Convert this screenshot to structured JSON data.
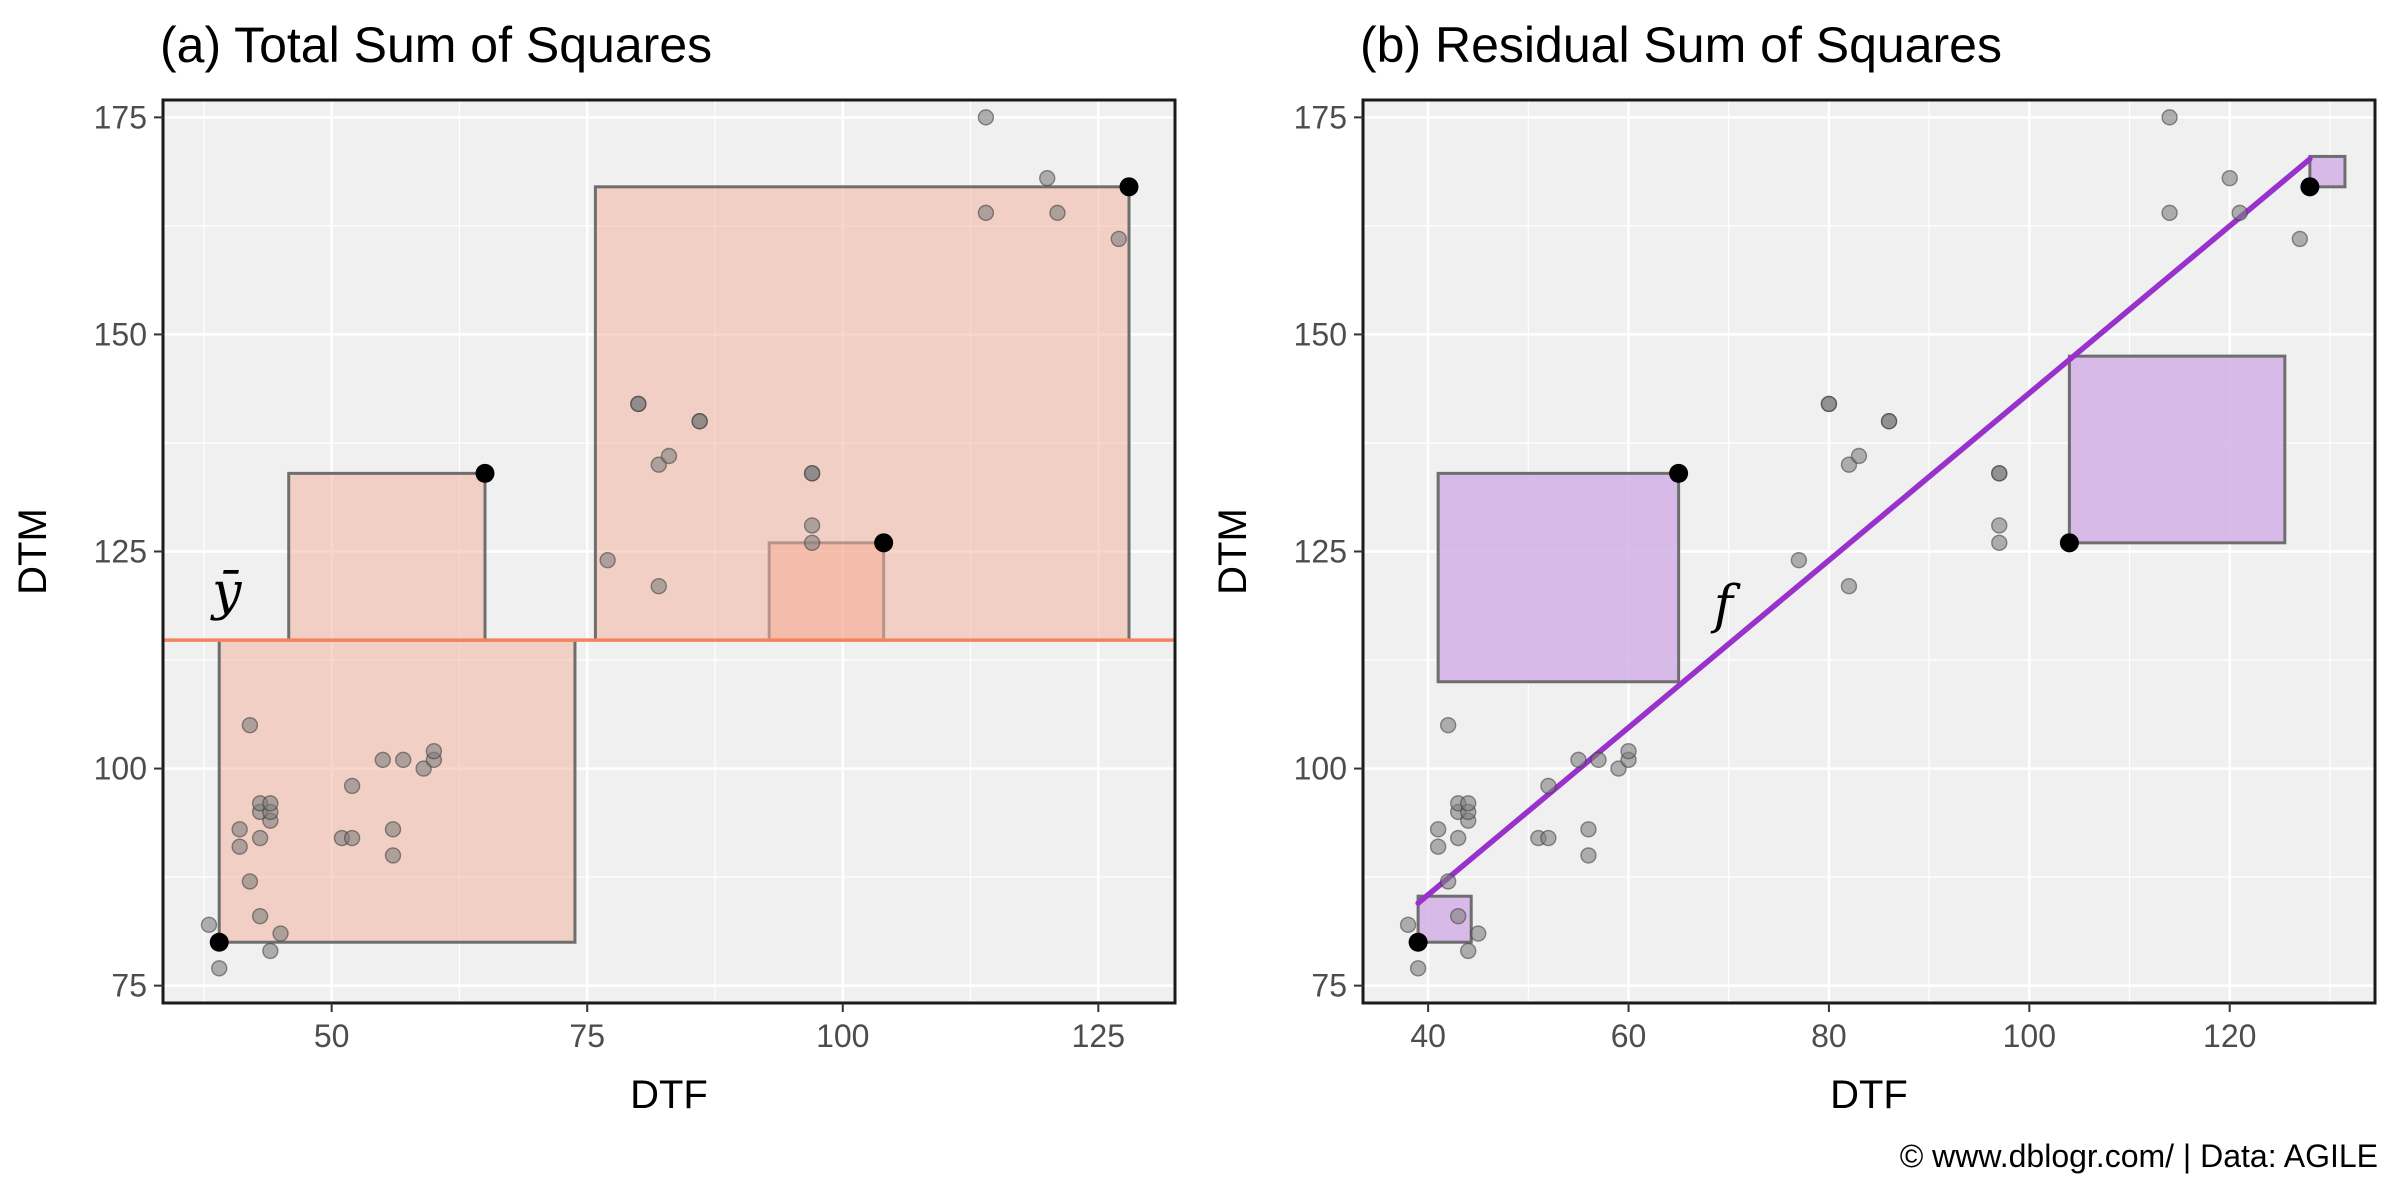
{
  "caption": "© www.dblogr.com/  |  Data: AGILE",
  "chart_data": [
    {
      "type": "scatter",
      "title": "(a) Total Sum of Squares",
      "xlabel": "DTF",
      "ylabel": "DTM",
      "xlim": [
        33.5,
        132.5
      ],
      "ylim": [
        73,
        177
      ],
      "xticks": [
        50,
        75,
        100,
        125
      ],
      "yticks": [
        75,
        100,
        125,
        150,
        175
      ],
      "grid": true,
      "mean_label": "ȳ",
      "mean_y": 114.8,
      "colors": {
        "mean_line": "#f4845f",
        "square_fill": "#f4b4a0",
        "square_fill_dark": "#f5a58c",
        "square_edge": "#6e6e6e",
        "point": "#7f7f7f",
        "highlight": "#000000",
        "panel_bg": "#f0f0f0"
      },
      "points": [
        [
          38,
          82
        ],
        [
          39,
          77
        ],
        [
          41,
          91
        ],
        [
          41,
          93
        ],
        [
          42,
          87
        ],
        [
          42,
          105
        ],
        [
          43,
          92
        ],
        [
          43,
          95
        ],
        [
          43,
          96
        ],
        [
          43,
          83
        ],
        [
          44,
          79
        ],
        [
          44,
          94
        ],
        [
          44,
          95
        ],
        [
          44,
          96
        ],
        [
          45,
          81
        ],
        [
          51,
          92
        ],
        [
          52,
          92
        ],
        [
          52,
          98
        ],
        [
          55,
          101
        ],
        [
          56,
          90
        ],
        [
          56,
          93
        ],
        [
          57,
          101
        ],
        [
          59,
          100
        ],
        [
          60,
          101
        ],
        [
          60,
          102
        ],
        [
          77,
          124
        ],
        [
          80,
          142
        ],
        [
          80,
          142
        ],
        [
          82,
          121
        ],
        [
          82,
          135
        ],
        [
          83,
          136
        ],
        [
          86,
          140
        ],
        [
          86,
          140
        ],
        [
          97,
          126
        ],
        [
          97,
          128
        ],
        [
          97,
          134
        ],
        [
          97,
          134
        ],
        [
          114,
          164
        ],
        [
          114,
          175
        ],
        [
          120,
          168
        ],
        [
          121,
          164
        ],
        [
          127,
          161
        ]
      ],
      "highlighted_points": [
        [
          39,
          80
        ],
        [
          65,
          134
        ],
        [
          104,
          126
        ],
        [
          128,
          167
        ]
      ],
      "squares": [
        {
          "x0": 39,
          "x1": 73.8,
          "y0": 80,
          "y1": 114.8
        },
        {
          "x0": 45.8,
          "x1": 65,
          "y0": 114.8,
          "y1": 134
        },
        {
          "x0": 92.8,
          "x1": 104,
          "y0": 114.8,
          "y1": 126
        },
        {
          "x0": 75.8,
          "x1": 128,
          "y0": 114.8,
          "y1": 167
        }
      ]
    },
    {
      "type": "scatter",
      "title": "(b) Residual Sum of Squares",
      "xlabel": "DTF",
      "ylabel": "DTM",
      "xlim": [
        33.5,
        134.5
      ],
      "ylim": [
        73,
        177
      ],
      "xticks": [
        40,
        60,
        80,
        100,
        120
      ],
      "yticks": [
        75,
        100,
        125,
        150,
        175
      ],
      "grid": true,
      "fit_label": "f",
      "fit_line": {
        "x": [
          39,
          128
        ],
        "y": [
          84.5,
          170.2
        ]
      },
      "colors": {
        "fit_line": "#9932cc",
        "square_fill": "#d2b0e6",
        "square_edge": "#6e6e6e",
        "point": "#7f7f7f",
        "highlight": "#000000",
        "panel_bg": "#f0f0f0"
      },
      "points": [
        [
          38,
          82
        ],
        [
          39,
          77
        ],
        [
          41,
          91
        ],
        [
          41,
          93
        ],
        [
          42,
          87
        ],
        [
          42,
          105
        ],
        [
          43,
          92
        ],
        [
          43,
          95
        ],
        [
          43,
          96
        ],
        [
          43,
          83
        ],
        [
          44,
          79
        ],
        [
          44,
          94
        ],
        [
          44,
          95
        ],
        [
          44,
          96
        ],
        [
          45,
          81
        ],
        [
          51,
          92
        ],
        [
          52,
          92
        ],
        [
          52,
          98
        ],
        [
          55,
          101
        ],
        [
          56,
          90
        ],
        [
          56,
          93
        ],
        [
          57,
          101
        ],
        [
          59,
          100
        ],
        [
          60,
          101
        ],
        [
          60,
          102
        ],
        [
          77,
          124
        ],
        [
          80,
          142
        ],
        [
          80,
          142
        ],
        [
          82,
          121
        ],
        [
          82,
          135
        ],
        [
          83,
          136
        ],
        [
          86,
          140
        ],
        [
          86,
          140
        ],
        [
          97,
          126
        ],
        [
          97,
          128
        ],
        [
          97,
          134
        ],
        [
          97,
          134
        ],
        [
          114,
          164
        ],
        [
          114,
          175
        ],
        [
          120,
          168
        ],
        [
          121,
          164
        ],
        [
          127,
          161
        ]
      ],
      "highlighted_points": [
        [
          39,
          80
        ],
        [
          65,
          134
        ],
        [
          104,
          126
        ],
        [
          128,
          167
        ]
      ],
      "squares": [
        {
          "x0": 39,
          "x1": 44.3,
          "y0": 80,
          "y1": 85.3
        },
        {
          "x0": 41,
          "x1": 65,
          "y0": 110,
          "y1": 134
        },
        {
          "x0": 104,
          "x1": 125.5,
          "y0": 126,
          "y1": 147.5
        },
        {
          "x0": 128,
          "x1": 131.5,
          "y0": 167,
          "y1": 170.5
        }
      ]
    }
  ]
}
